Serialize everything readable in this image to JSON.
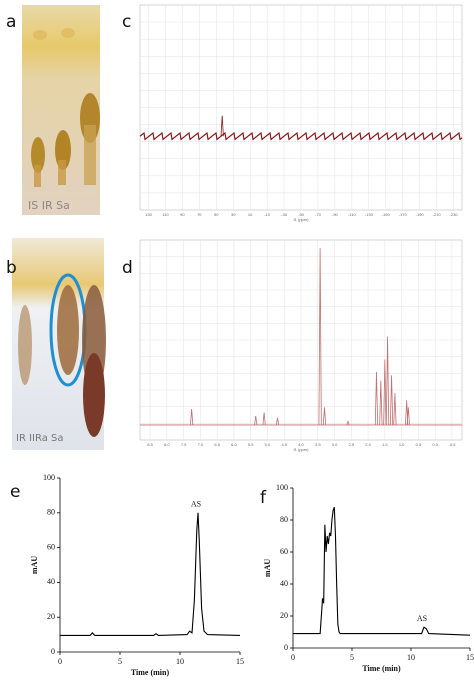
{
  "photos": [
    {
      "panel": "a",
      "label": "IS IR Sa"
    },
    {
      "panel": "b",
      "label": "IR IIRa Sa"
    }
  ],
  "chart_data": [
    {
      "type": "spectrum",
      "panel": "c",
      "xlabel": "f1 (ppm)",
      "color": "#8b1a1a",
      "grid": true,
      "xlim": [
        140,
        -240
      ],
      "xticks": [
        130,
        110,
        90,
        70,
        50,
        30,
        10,
        -10,
        -30,
        -50,
        -70,
        -90,
        -110,
        -130,
        -150,
        -170,
        -190,
        -210,
        -230
      ],
      "ylim": [
        -36,
        64
      ],
      "x": [
        43
      ],
      "values": [
        10
      ]
    },
    {
      "type": "spectrum",
      "panel": "d",
      "xlabel": "f1 (ppm)",
      "color": "#c07070",
      "grid": true,
      "xlim": [
        8.8,
        -0.8
      ],
      "xticks": [
        8.5,
        {
          "value": 8,
          "label": "8.0"
        },
        7.5,
        {
          "value": 7,
          "label": "7.0"
        },
        6.5,
        {
          "value": 6,
          "label": "6.0"
        },
        5.5,
        {
          "value": 5,
          "label": "5.0"
        },
        4.5,
        {
          "value": 4,
          "label": "4.0"
        },
        3.5,
        {
          "value": 3,
          "label": "3.0"
        },
        2.5,
        {
          "value": 2,
          "label": "2.0"
        },
        1.5,
        {
          "value": 1,
          "label": "1.0"
        },
        0.5,
        {
          "value": 0,
          "label": "0.0"
        },
        -0.5
      ],
      "ylim": [
        -8.5,
        104.5
      ],
      "x": [
        7.26,
        5.35,
        5.1,
        4.7,
        3.43,
        3.3,
        2.6,
        1.75,
        1.62,
        1.5,
        1.42,
        1.3,
        1.2,
        0.85,
        0.8
      ],
      "values": [
        9,
        5,
        7,
        4,
        100,
        10,
        2,
        30,
        25,
        37,
        50,
        28,
        18,
        14,
        10
      ]
    },
    {
      "type": "line",
      "panel": "e",
      "xlabel": "Time (min)",
      "ylabel": "mAU",
      "color": "#000000",
      "annotation": "AS",
      "xlim": [
        0,
        15
      ],
      "xticks": [
        0,
        5,
        10,
        15
      ],
      "ylim": [
        0,
        100
      ],
      "yticks": [
        0,
        20,
        40,
        60,
        80,
        100
      ],
      "x": [
        0,
        2.5,
        2.7,
        2.9,
        7.8,
        8,
        8.2,
        10.6,
        10.8,
        11,
        11.2,
        11.4,
        11.5,
        11.6,
        11.8,
        12,
        12.3,
        15
      ],
      "values": [
        9.5,
        9.5,
        11,
        9.5,
        9.5,
        10.5,
        9.5,
        10,
        12,
        11,
        30,
        70,
        80,
        65,
        25,
        12,
        10,
        9.5
      ]
    },
    {
      "type": "line",
      "panel": "f",
      "xlabel": "Time (min)",
      "ylabel": "mAU",
      "color": "#000000",
      "annotation": "AS",
      "xlim": [
        0,
        15
      ],
      "xticks": [
        0,
        5,
        10,
        15
      ],
      "ylim": [
        0,
        100
      ],
      "yticks": [
        0,
        20,
        40,
        60,
        80,
        100
      ],
      "x": [
        0,
        2.3,
        2.45,
        2.5,
        2.6,
        2.7,
        2.8,
        2.9,
        3.0,
        3.1,
        3.2,
        3.3,
        3.4,
        3.5,
        3.6,
        3.7,
        3.8,
        3.9,
        4.0,
        4.2,
        10.9,
        11.1,
        11.3,
        11.5,
        15
      ],
      "values": [
        9,
        9,
        25,
        31,
        28,
        77,
        60,
        70,
        65,
        72,
        70,
        80,
        86,
        88,
        70,
        40,
        15,
        10,
        9,
        9,
        9,
        13,
        12,
        9,
        8
      ]
    }
  ]
}
